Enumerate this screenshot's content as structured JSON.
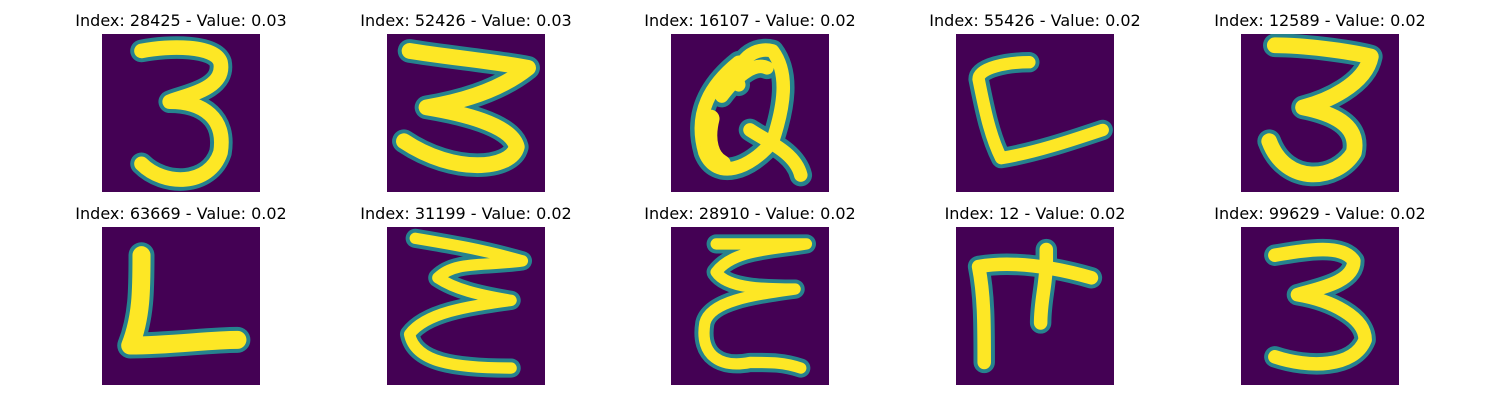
{
  "figure": {
    "colormap": {
      "background": "#440154",
      "stroke_outer": "#26828e",
      "stroke_mid": "#6ece58",
      "stroke_core": "#fde725"
    },
    "panels": [
      {
        "title": "Index: 28425 - Value: 0.03",
        "glyph": "digit-3"
      },
      {
        "title": "Index: 52426 - Value: 0.03",
        "glyph": "digit-3-wide"
      },
      {
        "title": "Index: 16107 - Value: 0.02",
        "glyph": "letter-a-like"
      },
      {
        "title": "Index: 55426 - Value: 0.02",
        "glyph": "letter-c-like"
      },
      {
        "title": "Index: 12589 - Value: 0.02",
        "glyph": "digit-3"
      },
      {
        "title": "Index: 63669 - Value: 0.02",
        "glyph": "letter-l"
      },
      {
        "title": "Index: 31199 - Value: 0.02",
        "glyph": "letter-e-like"
      },
      {
        "title": "Index: 28910 - Value: 0.02",
        "glyph": "letter-e-like"
      },
      {
        "title": "Index: 12 - Value: 0.02",
        "glyph": "letter-f-like"
      },
      {
        "title": "Index: 99629 - Value: 0.02",
        "glyph": "digit-3"
      }
    ]
  }
}
